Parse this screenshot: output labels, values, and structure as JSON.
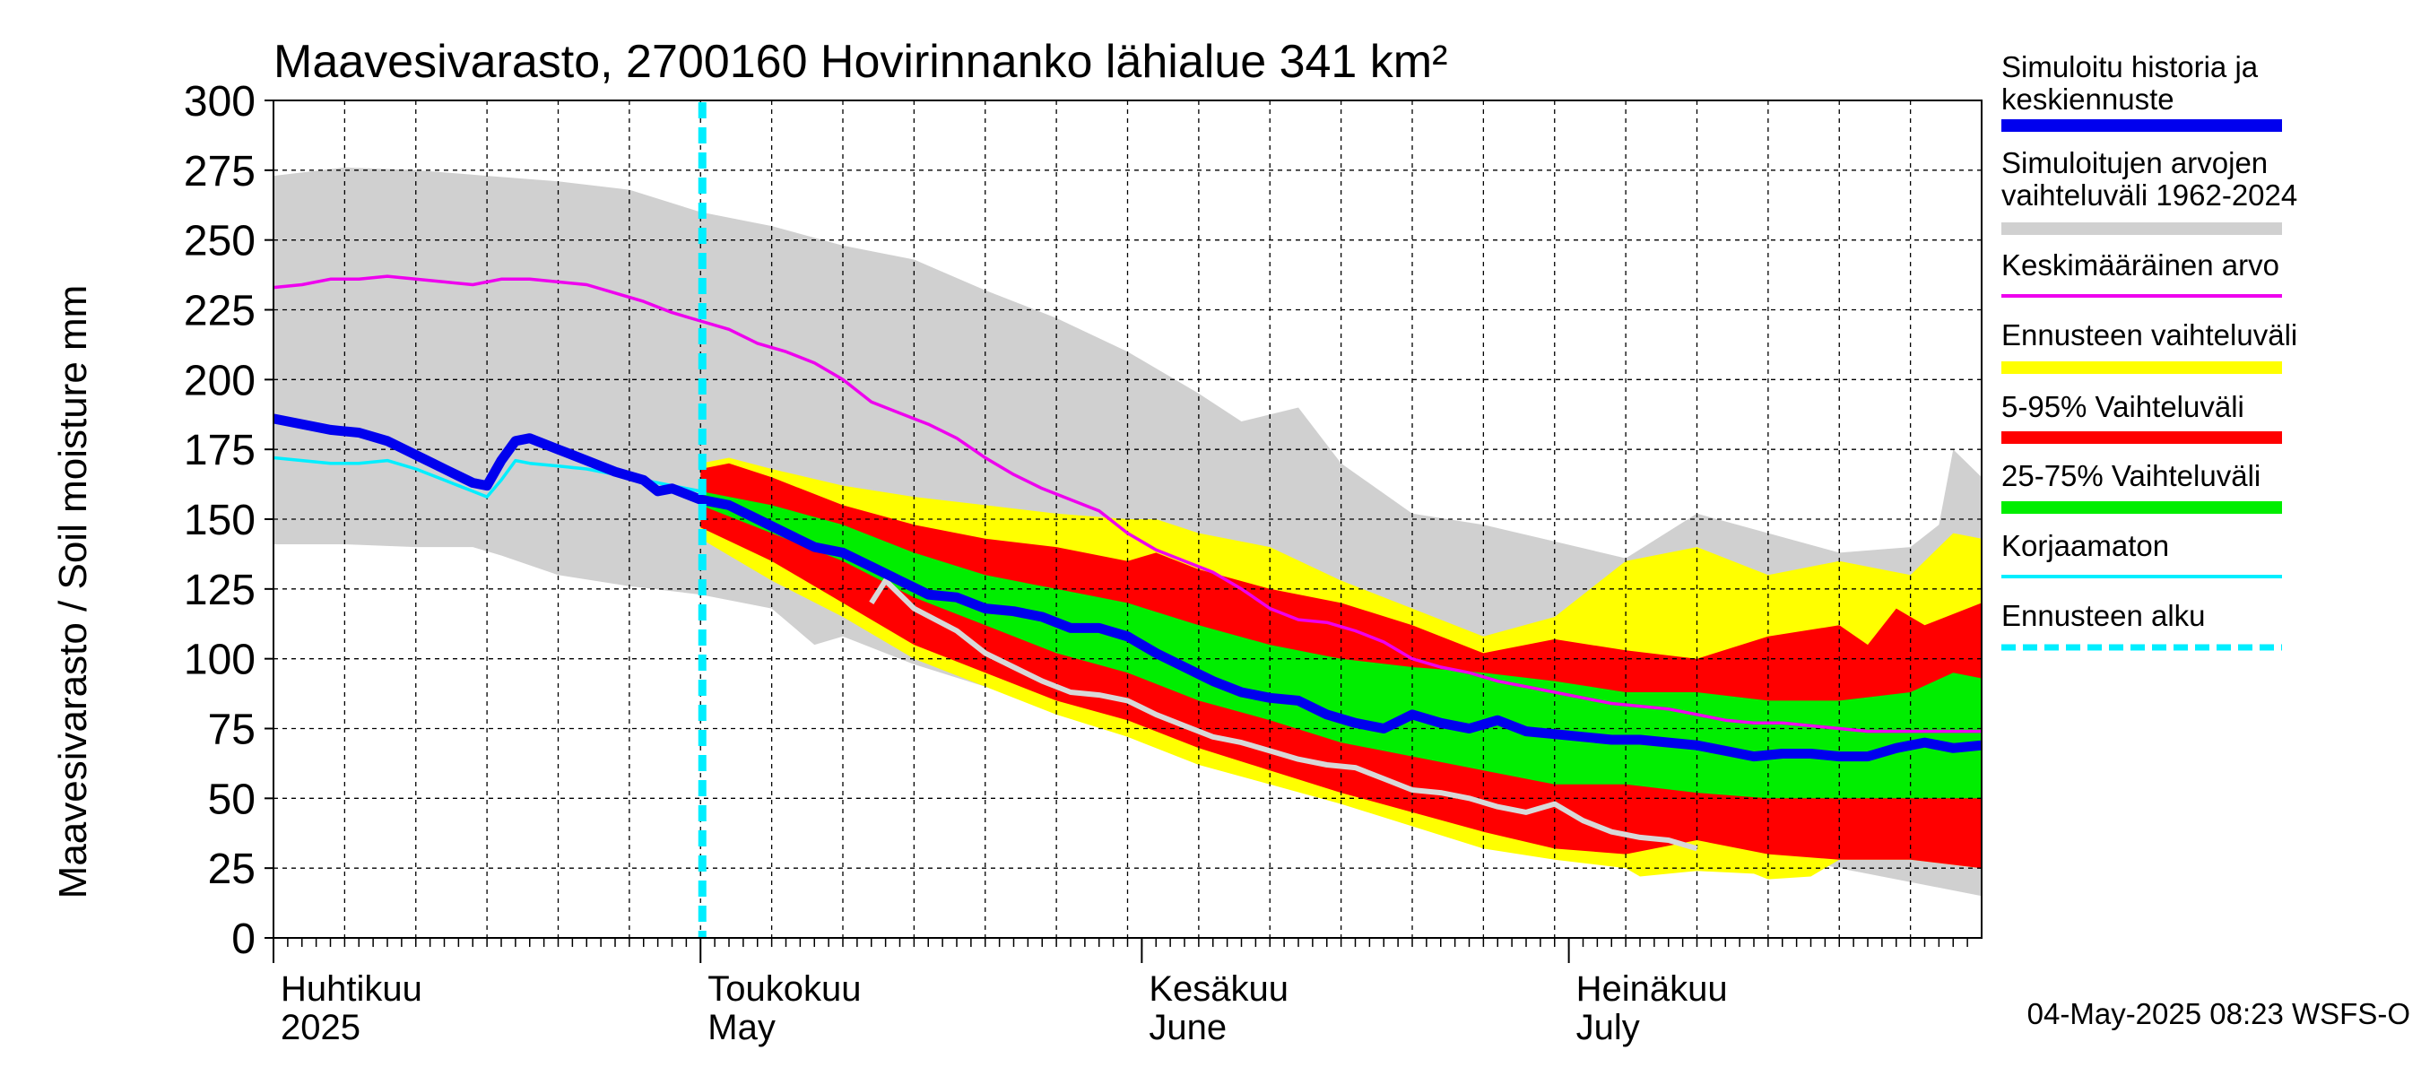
{
  "chart_data": {
    "type": "area",
    "title": "Maavesivarasto, 2700160 Hovirinnanko lähialue 341 km²",
    "ylabel": "Maavesivarasto / Soil moisture   mm",
    "ylim": [
      0,
      300
    ],
    "yticks": [
      0,
      25,
      50,
      75,
      100,
      125,
      150,
      175,
      200,
      225,
      250,
      275,
      300
    ],
    "xlim_days": [
      0,
      120
    ],
    "x_unit": "days since 2025-04-01",
    "forecast_start_day": 30,
    "months": [
      {
        "day": 0,
        "fi": "Huhtikuu",
        "en": "2025"
      },
      {
        "day": 30,
        "fi": "Toukokuu",
        "en": "May"
      },
      {
        "day": 61,
        "fi": "Kesäkuu",
        "en": "June"
      },
      {
        "day": 91,
        "fi": "Heinäkuu",
        "en": "July"
      }
    ],
    "timestamp": "04-May-2025 08:23 WSFS-O",
    "colors": {
      "grey_range": "#d0d0d0",
      "yellow": "#ffff00",
      "red": "#ff0000",
      "green": "#00ee00",
      "blue": "#0000ee",
      "magenta": "#ee00ee",
      "cyan": "#00eeff",
      "light": "#d8d8d8"
    },
    "legend": [
      {
        "label": "Simuloitu historia ja keskiennuste",
        "color": "#0000ee",
        "style": "thick"
      },
      {
        "label": "Simuloitujen arvojen vaihteluväli 1962-2024",
        "color": "#d0d0d0",
        "style": "thick"
      },
      {
        "label": "Keskimääräinen arvo",
        "color": "#ee00ee",
        "style": "thin"
      },
      {
        "label": "Ennusteen vaihteluväli",
        "color": "#ffff00",
        "style": "thick"
      },
      {
        "label": "5-95% Vaihteluväli",
        "color": "#ff0000",
        "style": "thick"
      },
      {
        "label": "25-75% Vaihteluväli",
        "color": "#00ee00",
        "style": "thick"
      },
      {
        "label": "Korjaamaton",
        "color": "#00eeff",
        "style": "thin"
      },
      {
        "label": "Ennusteen alku",
        "color": "#00eeff",
        "style": "dashed"
      }
    ],
    "series": [
      {
        "name": "range_1962_2024_max",
        "x": [
          0,
          5,
          10,
          15,
          20,
          25,
          30,
          35,
          40,
          45,
          50,
          55,
          60,
          65,
          68,
          72,
          75,
          80,
          85,
          90,
          95,
          100,
          105,
          110,
          115,
          117,
          118,
          120
        ],
        "y": [
          273,
          276,
          275,
          273,
          271,
          268,
          260,
          255,
          248,
          243,
          232,
          222,
          210,
          195,
          185,
          190,
          170,
          152,
          148,
          142,
          136,
          152,
          145,
          138,
          140,
          148,
          175,
          165
        ]
      },
      {
        "name": "range_1962_2024_min",
        "x": [
          0,
          5,
          10,
          14,
          16,
          20,
          25,
          30,
          35,
          38,
          40,
          45,
          50,
          55,
          60,
          70,
          80,
          90,
          100,
          110,
          120
        ],
        "y": [
          141,
          141,
          140,
          140,
          137,
          130,
          126,
          123,
          118,
          105,
          108,
          98,
          90,
          82,
          78,
          65,
          55,
          45,
          35,
          25,
          15
        ]
      },
      {
        "name": "forecast_range_max",
        "x": [
          30,
          32,
          35,
          40,
          45,
          50,
          55,
          60,
          62,
          65,
          70,
          75,
          80,
          85,
          90,
          95,
          100,
          105,
          110,
          115,
          118,
          120
        ],
        "y": [
          170,
          172,
          168,
          162,
          158,
          155,
          152,
          150,
          150,
          145,
          140,
          128,
          118,
          108,
          115,
          135,
          140,
          130,
          135,
          130,
          145,
          143
        ]
      },
      {
        "name": "forecast_range_min",
        "x": [
          30,
          35,
          40,
          45,
          50,
          55,
          60,
          65,
          70,
          75,
          80,
          85,
          90,
          95,
          96,
          100,
          104,
          105,
          108,
          110,
          115,
          120
        ],
        "y": [
          143,
          128,
          115,
          100,
          90,
          80,
          72,
          62,
          55,
          48,
          40,
          32,
          28,
          25,
          22,
          24,
          23,
          21,
          22,
          28,
          28,
          25
        ]
      },
      {
        "name": "p95",
        "x": [
          30,
          32,
          35,
          40,
          45,
          50,
          55,
          60,
          62,
          65,
          70,
          75,
          80,
          85,
          90,
          95,
          100,
          105,
          110,
          112,
          114,
          116,
          120
        ],
        "y": [
          168,
          170,
          165,
          155,
          148,
          143,
          140,
          135,
          138,
          132,
          125,
          120,
          112,
          102,
          107,
          103,
          100,
          108,
          112,
          105,
          118,
          112,
          120
        ]
      },
      {
        "name": "p05",
        "x": [
          30,
          35,
          40,
          45,
          50,
          55,
          60,
          65,
          70,
          75,
          80,
          85,
          90,
          95,
          100,
          105,
          110,
          115,
          120
        ],
        "y": [
          147,
          135,
          120,
          105,
          95,
          85,
          78,
          68,
          60,
          52,
          45,
          38,
          32,
          30,
          35,
          30,
          28,
          28,
          25
        ]
      },
      {
        "name": "p75",
        "x": [
          30,
          35,
          40,
          45,
          50,
          55,
          60,
          65,
          70,
          75,
          80,
          85,
          90,
          95,
          100,
          105,
          110,
          115,
          118,
          120
        ],
        "y": [
          160,
          155,
          148,
          138,
          130,
          125,
          120,
          112,
          105,
          100,
          97,
          95,
          92,
          88,
          88,
          85,
          85,
          88,
          95,
          93
        ]
      },
      {
        "name": "p25",
        "x": [
          30,
          35,
          40,
          45,
          50,
          55,
          60,
          65,
          70,
          75,
          80,
          85,
          90,
          95,
          100,
          105,
          110,
          115,
          120
        ],
        "y": [
          155,
          145,
          135,
          122,
          112,
          102,
          95,
          85,
          78,
          70,
          65,
          60,
          55,
          55,
          52,
          50,
          50,
          50,
          50
        ]
      },
      {
        "name": "Simuloitu historia ja keskiennuste",
        "x": [
          0,
          2,
          4,
          6,
          8,
          10,
          12,
          14,
          15,
          16,
          17,
          18,
          20,
          22,
          24,
          26,
          27,
          28,
          30,
          32,
          34,
          36,
          38,
          40,
          42,
          44,
          46,
          48,
          50,
          52,
          54,
          56,
          58,
          60,
          62,
          64,
          66,
          68,
          70,
          72,
          74,
          76,
          78,
          80,
          82,
          84,
          86,
          88,
          90,
          92,
          94,
          96,
          98,
          100,
          102,
          104,
          106,
          108,
          110,
          112,
          114,
          116,
          118,
          120
        ],
        "y": [
          186,
          184,
          182,
          181,
          178,
          173,
          168,
          163,
          162,
          171,
          178,
          179,
          175,
          171,
          167,
          164,
          160,
          161,
          157,
          155,
          150,
          145,
          140,
          138,
          133,
          128,
          123,
          122,
          118,
          117,
          115,
          111,
          111,
          108,
          102,
          97,
          92,
          88,
          86,
          85,
          80,
          77,
          75,
          80,
          77,
          75,
          78,
          74,
          73,
          72,
          71,
          71,
          70,
          69,
          67,
          65,
          66,
          66,
          65,
          65,
          68,
          70,
          68,
          69
        ]
      },
      {
        "name": "Keskimääräinen arvo",
        "x": [
          0,
          2,
          4,
          6,
          8,
          10,
          12,
          14,
          16,
          18,
          20,
          22,
          24,
          26,
          28,
          30,
          32,
          34,
          36,
          38,
          40,
          42,
          44,
          46,
          48,
          50,
          52,
          54,
          56,
          58,
          60,
          62,
          64,
          66,
          68,
          70,
          72,
          74,
          76,
          78,
          80,
          82,
          84,
          86,
          88,
          90,
          92,
          94,
          96,
          98,
          100,
          102,
          104,
          106,
          108,
          110,
          112,
          114,
          116,
          118,
          120
        ],
        "y": [
          233,
          234,
          236,
          236,
          237,
          236,
          235,
          234,
          236,
          236,
          235,
          234,
          231,
          228,
          224,
          221,
          218,
          213,
          210,
          206,
          200,
          192,
          188,
          184,
          179,
          172,
          166,
          161,
          157,
          153,
          145,
          139,
          135,
          131,
          125,
          118,
          114,
          113,
          110,
          106,
          100,
          97,
          95,
          92,
          90,
          88,
          86,
          84,
          83,
          82,
          80,
          78,
          77,
          77,
          76,
          75,
          74,
          74,
          74,
          74,
          74
        ]
      },
      {
        "name": "Korjaamaton",
        "x": [
          0,
          2,
          4,
          6,
          8,
          10,
          12,
          14,
          15,
          16,
          17,
          18,
          20,
          22,
          24,
          26,
          28,
          30
        ],
        "y": [
          172,
          171,
          170,
          170,
          171,
          168,
          164,
          160,
          158,
          164,
          171,
          170,
          169,
          168,
          166,
          164,
          162,
          160
        ]
      },
      {
        "name": "Light grey trace",
        "x": [
          42,
          43,
          45,
          48,
          50,
          52,
          54,
          56,
          58,
          60,
          62,
          64,
          66,
          68,
          70,
          72,
          74,
          76,
          78,
          80,
          82,
          84,
          86,
          88,
          90,
          92,
          94,
          96,
          98,
          100
        ],
        "y": [
          120,
          128,
          118,
          110,
          102,
          97,
          92,
          88,
          87,
          85,
          80,
          76,
          72,
          70,
          67,
          64,
          62,
          61,
          57,
          53,
          52,
          50,
          47,
          45,
          48,
          42,
          38,
          36,
          35,
          32
        ]
      }
    ]
  }
}
